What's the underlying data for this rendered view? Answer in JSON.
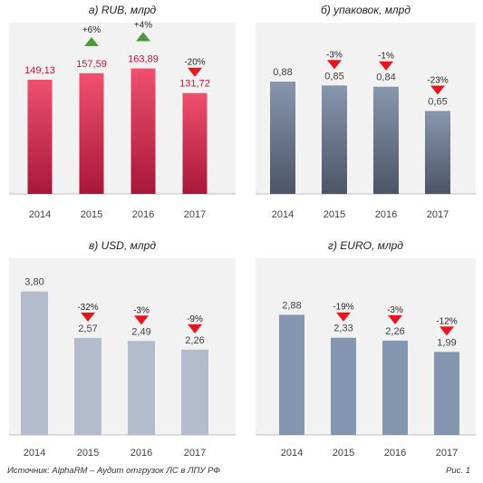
{
  "colors": {
    "panel_bg": "#f2f2f2",
    "baseline": "#bfbfbf",
    "axis_text": "#404040",
    "value_text": "#404040",
    "up_marker": "#4e9a3a",
    "down_marker": "#e8151c",
    "rub_value_text": "#c0143c"
  },
  "chart_data": [
    {
      "type": "bar",
      "title": "а) RUB, млрд",
      "categories": [
        "2014",
        "2015",
        "2016",
        "2017"
      ],
      "values": [
        149.13,
        157.59,
        163.89,
        131.72
      ],
      "value_labels": [
        "149,13",
        "157,59",
        "163,89",
        "131,72"
      ],
      "changes": [
        null,
        "+6%",
        "+4%",
        "-20%"
      ],
      "change_direction": [
        null,
        "up",
        "up",
        "down"
      ],
      "bar_color_top": "#f0506e",
      "bar_color_bottom": "#a8173a",
      "ylim": [
        0,
        200
      ],
      "xlabel": "",
      "ylabel": "",
      "grid": false
    },
    {
      "type": "bar",
      "title": "б) упаковок, млрд",
      "categories": [
        "2014",
        "2015",
        "2016",
        "2017"
      ],
      "values": [
        0.88,
        0.85,
        0.84,
        0.65
      ],
      "value_labels": [
        "0,88",
        "0,85",
        "0,84",
        "0,65"
      ],
      "changes": [
        null,
        "-3%",
        "-1%",
        "-23%"
      ],
      "change_direction": [
        null,
        "down",
        "down",
        "down"
      ],
      "bar_color_top": "#8896ae",
      "bar_color_bottom": "#4c5567",
      "ylim": [
        0,
        1.2
      ],
      "xlabel": "",
      "ylabel": "",
      "grid": false
    },
    {
      "type": "bar",
      "title": "в) USD, млрд",
      "categories": [
        "2014",
        "2015",
        "2016",
        "2017"
      ],
      "values": [
        3.8,
        2.57,
        2.49,
        2.26
      ],
      "value_labels": [
        "3,80",
        "2,57",
        "2,49",
        "2,26"
      ],
      "changes": [
        null,
        "-32%",
        "-3%",
        "-9%"
      ],
      "change_direction": [
        null,
        "down",
        "down",
        "down"
      ],
      "bar_color_top": "#b2bccd",
      "bar_color_bottom": "#b2bccd",
      "ylim": [
        0,
        4.2
      ],
      "xlabel": "",
      "ylabel": "",
      "grid": false
    },
    {
      "type": "bar",
      "title": "г) EURO, млрд",
      "categories": [
        "2014",
        "2015",
        "2016",
        "2017"
      ],
      "values": [
        2.88,
        2.33,
        2.26,
        1.99
      ],
      "value_labels": [
        "2,88",
        "2,33",
        "2,26",
        "1,99"
      ],
      "changes": [
        null,
        "-19%",
        "-3%",
        "-12%"
      ],
      "change_direction": [
        null,
        "down",
        "down",
        "down"
      ],
      "bar_color_top": "#8496b0",
      "bar_color_bottom": "#8496b0",
      "ylim": [
        0,
        3.8
      ],
      "xlabel": "",
      "ylabel": "",
      "grid": false
    }
  ],
  "footer": {
    "source": "Источник: AlphaRM – Аудит отгрузок ЛС в ЛПУ РФ",
    "figure": "Рис. 1"
  }
}
